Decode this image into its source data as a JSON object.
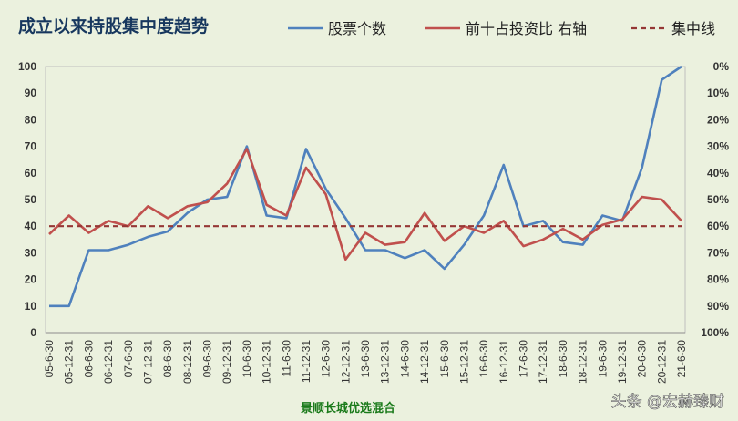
{
  "chart_data": {
    "type": "line",
    "title": "成立以来持股集中度趋势",
    "subtitle": "景顺长城优选混合",
    "watermark": "头条 @宏赫臻财",
    "legend_position": "top",
    "grid": false,
    "categories": [
      "05-6-30",
      "05-12-31",
      "06-6-30",
      "06-12-31",
      "07-6-30",
      "07-12-31",
      "08-6-30",
      "08-12-31",
      "09-6-30",
      "09-12-31",
      "10-6-30",
      "10-12-31",
      "11-6-30",
      "11-12-31",
      "12-6-30",
      "12-12-31",
      "13-6-30",
      "13-12-31",
      "14-6-30",
      "14-12-31",
      "15-6-30",
      "15-12-31",
      "16-6-30",
      "16-12-31",
      "17-6-30",
      "17-12-31",
      "18-6-30",
      "18-12-31",
      "19-6-30",
      "19-12-31",
      "20-6-30",
      "20-12-31",
      "21-6-30"
    ],
    "left_axis": {
      "ylim": [
        0,
        100
      ],
      "ticks": [
        "0",
        "10",
        "20",
        "30",
        "40",
        "50",
        "60",
        "70",
        "80",
        "90",
        "100"
      ]
    },
    "right_axis": {
      "ylim": [
        0,
        100
      ],
      "inverted": true,
      "ticks": [
        "0%",
        "10%",
        "20%",
        "30%",
        "40%",
        "50%",
        "60%",
        "70%",
        "80%",
        "90%",
        "100%"
      ]
    },
    "series": [
      {
        "name": "股票个数",
        "axis": "left",
        "color": "#4f81bd",
        "style": "solid",
        "values": [
          10,
          10,
          31,
          31,
          33,
          36,
          38,
          45,
          50,
          51,
          70,
          44,
          43,
          69,
          54,
          43,
          31,
          31,
          28,
          31,
          24,
          33,
          44,
          63,
          40,
          42,
          34,
          33,
          44,
          42,
          62,
          95,
          100
        ]
      },
      {
        "name": "前十占投资比 右轴",
        "axis": "right",
        "color": "#c0504d",
        "style": "solid",
        "values": [
          63,
          56,
          62.5,
          58,
          60,
          52.5,
          57,
          52.5,
          51,
          44,
          31,
          52,
          56,
          38,
          48,
          72.5,
          62.5,
          67,
          66,
          55,
          65.5,
          60,
          62.5,
          58,
          67.5,
          65,
          61,
          65,
          59.5,
          57.5,
          49,
          50,
          58
        ]
      },
      {
        "name": "集中线",
        "axis": "left",
        "color": "#953735",
        "style": "dashed",
        "values": [
          40,
          40,
          40,
          40,
          40,
          40,
          40,
          40,
          40,
          40,
          40,
          40,
          40,
          40,
          40,
          40,
          40,
          40,
          40,
          40,
          40,
          40,
          40,
          40,
          40,
          40,
          40,
          40,
          40,
          40,
          40,
          40,
          40
        ]
      }
    ]
  }
}
